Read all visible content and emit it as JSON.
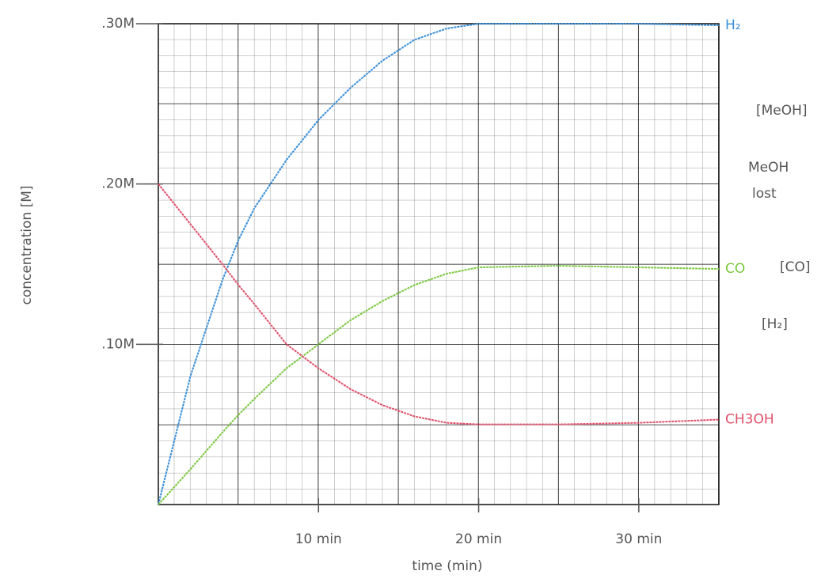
{
  "chart_data": {
    "type": "line",
    "x_label": "time (min)",
    "y_label": "concentration [M]",
    "xlim": [
      0,
      35
    ],
    "ylim": [
      0,
      0.3
    ],
    "xticks": [
      {
        "value": 10,
        "label": "10 min"
      },
      {
        "value": 20,
        "label": "20 min"
      },
      {
        "value": 30,
        "label": "30 min"
      }
    ],
    "yticks": [
      {
        "value": 0.1,
        "label": ".10M"
      },
      {
        "value": 0.2,
        "label": ".20M"
      },
      {
        "value": 0.3,
        "label": ".30M"
      }
    ],
    "grid": true,
    "x": [
      0,
      2,
      4,
      5,
      6,
      8,
      10,
      12,
      14,
      16,
      18,
      20,
      25,
      30,
      35
    ],
    "series": [
      {
        "name": "H₂",
        "color": "#3a8fd8",
        "values": [
          0,
          0.08,
          0.14,
          0.165,
          0.185,
          0.215,
          0.24,
          0.26,
          0.277,
          0.29,
          0.297,
          0.3,
          0.3,
          0.3,
          0.299
        ]
      },
      {
        "name": "CO",
        "color": "#7cc840",
        "values": [
          0,
          0.022,
          0.045,
          0.056,
          0.066,
          0.085,
          0.1,
          0.115,
          0.127,
          0.137,
          0.144,
          0.148,
          0.149,
          0.148,
          0.147
        ]
      },
      {
        "name": "CH3OH",
        "color": "#e0506a",
        "values": [
          0.2,
          0.175,
          0.15,
          0.137,
          0.125,
          0.1,
          0.085,
          0.072,
          0.062,
          0.055,
          0.051,
          0.05,
          0.05,
          0.051,
          0.053
        ]
      }
    ],
    "annotations": [
      "[MeOH]",
      "MeOH",
      "lost",
      "[CO]",
      "[H₂]"
    ]
  }
}
